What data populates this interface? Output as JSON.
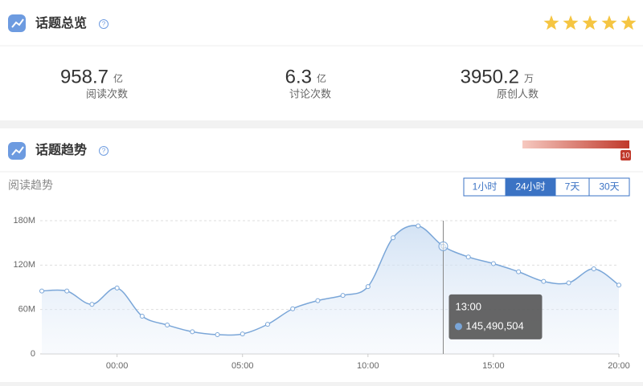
{
  "overview": {
    "title": "话题总览",
    "rating": 5,
    "stats": [
      {
        "value": "958.7",
        "unit": "亿",
        "label": "阅读次数"
      },
      {
        "value": "6.3",
        "unit": "亿",
        "label": "讨论次数"
      },
      {
        "value": "3950.2",
        "unit": "万",
        "label": "原创人数"
      }
    ]
  },
  "trend": {
    "title": "话题趋势",
    "heat_label": "10",
    "subtitle": "阅读趋势",
    "buttons": [
      "1小时",
      "24小时",
      "7天",
      "30天"
    ],
    "active_button": 1
  },
  "chart_data": {
    "type": "line",
    "x": [
      -3,
      -2,
      -1,
      0,
      1,
      2,
      3,
      4,
      5,
      6,
      7,
      8,
      9,
      10,
      11,
      12,
      13,
      14,
      15,
      16,
      17,
      18,
      19,
      20
    ],
    "series": [
      {
        "name": "阅读趋势",
        "color": "#7aa6d8",
        "values": [
          85000000,
          85000000,
          67000000,
          89000000,
          51000000,
          39000000,
          30000000,
          26000000,
          27000000,
          40000000,
          61000000,
          72000000,
          79000000,
          91000000,
          157000000,
          173000000,
          145490504,
          131000000,
          122000000,
          111000000,
          98000000,
          96000000,
          115000000,
          93000000
        ],
        "value_labels": [
          null,
          null,
          null,
          null,
          null,
          null,
          null,
          null,
          null,
          null,
          null,
          null,
          null,
          null,
          null,
          null,
          "145,490,504",
          null,
          null,
          null,
          null,
          null,
          null,
          null
        ]
      }
    ],
    "tooltip_title": "13:00",
    "xlim": [
      -3,
      20
    ],
    "xticks": [
      {
        "value": 0,
        "label": "00:00"
      },
      {
        "value": 5,
        "label": "05:00"
      },
      {
        "value": 10,
        "label": "10:00"
      },
      {
        "value": 15,
        "label": "15:00"
      },
      {
        "value": 20,
        "label": "20:00"
      }
    ],
    "ylim": [
      0,
      180000000
    ],
    "yticks": [
      {
        "value": 0,
        "label": "0"
      },
      {
        "value": 60000000,
        "label": "60M"
      },
      {
        "value": 120000000,
        "label": "120M"
      },
      {
        "value": 180000000,
        "label": "180M"
      }
    ],
    "grid": true
  }
}
